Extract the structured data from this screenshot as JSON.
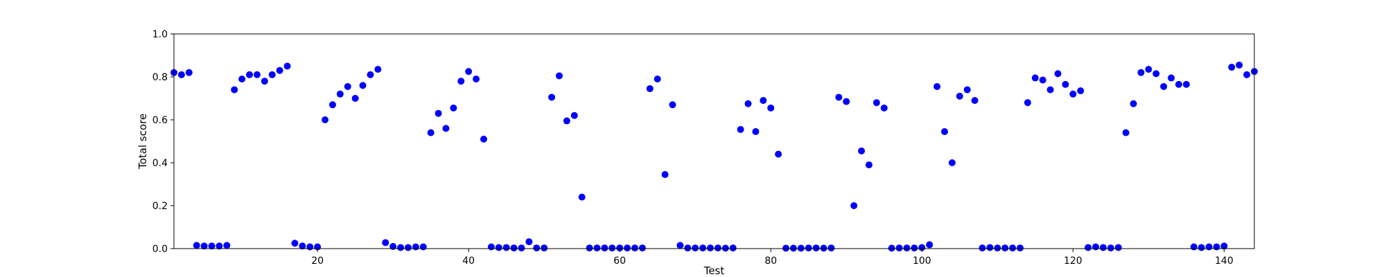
{
  "chart_data": {
    "type": "scatter",
    "xlabel": "Test",
    "ylabel": "Total score",
    "xlim": [
      1,
      144
    ],
    "ylim": [
      0.0,
      1.0
    ],
    "x_ticks": [
      20,
      40,
      60,
      80,
      100,
      120,
      140
    ],
    "y_ticks": [
      0.0,
      0.2,
      0.4,
      0.6,
      0.8,
      1.0
    ],
    "x_tick_labels": [
      "20",
      "40",
      "60",
      "80",
      "100",
      "120",
      "140"
    ],
    "y_tick_labels": [
      "0.0",
      "0.2",
      "0.4",
      "0.6",
      "0.8",
      "1.0"
    ],
    "grid": false,
    "marker_color": "#0000ff",
    "series": [
      {
        "x": [
          1,
          2,
          3,
          4,
          5,
          6,
          7,
          8,
          9,
          10,
          11,
          12,
          13,
          14,
          15,
          16,
          17,
          18,
          19,
          20,
          21,
          22,
          23,
          24,
          25,
          26,
          27,
          28,
          29,
          30,
          31,
          32,
          33,
          34,
          35,
          36,
          37,
          38,
          39,
          40,
          41,
          42,
          43,
          44,
          45,
          46,
          47,
          48,
          49,
          50,
          51,
          52,
          53,
          54,
          55,
          56,
          57,
          58,
          59,
          60,
          61,
          62,
          63,
          64,
          65,
          66,
          67,
          68,
          69,
          70,
          71,
          72,
          73,
          74,
          75,
          76,
          77,
          78,
          79,
          80,
          81,
          82,
          83,
          84,
          85,
          86,
          87,
          88,
          89,
          90,
          91,
          92,
          93,
          94,
          95,
          96,
          97,
          98,
          99,
          100,
          101,
          102,
          103,
          104,
          105,
          106,
          107,
          108,
          109,
          110,
          111,
          112,
          113,
          114,
          115,
          116,
          117,
          118,
          119,
          120,
          121,
          122,
          123,
          124,
          125,
          126,
          127,
          128,
          129,
          130,
          131,
          132,
          133,
          134,
          135,
          136,
          137,
          138,
          139,
          140,
          141,
          142,
          143,
          144
        ],
        "values": [
          0.82,
          0.81,
          0.82,
          0.015,
          0.012,
          0.012,
          0.012,
          0.015,
          0.74,
          0.79,
          0.81,
          0.81,
          0.78,
          0.81,
          0.83,
          0.85,
          0.025,
          0.012,
          0.008,
          0.008,
          0.6,
          0.67,
          0.72,
          0.755,
          0.7,
          0.76,
          0.81,
          0.835,
          0.028,
          0.01,
          0.005,
          0.005,
          0.008,
          0.008,
          0.54,
          0.63,
          0.56,
          0.655,
          0.78,
          0.825,
          0.79,
          0.51,
          0.008,
          0.005,
          0.005,
          0.003,
          0.003,
          0.032,
          0.003,
          0.003,
          0.705,
          0.805,
          0.595,
          0.62,
          0.24,
          0.003,
          0.003,
          0.003,
          0.003,
          0.003,
          0.003,
          0.003,
          0.003,
          0.745,
          0.79,
          0.345,
          0.67,
          0.015,
          0.003,
          0.003,
          0.003,
          0.003,
          0.003,
          0.002,
          0.003,
          0.555,
          0.675,
          0.545,
          0.69,
          0.655,
          0.44,
          0.002,
          0.002,
          0.002,
          0.003,
          0.003,
          0.002,
          0.003,
          0.705,
          0.685,
          0.2,
          0.455,
          0.39,
          0.68,
          0.655,
          0.002,
          0.003,
          0.003,
          0.003,
          0.005,
          0.018,
          0.755,
          0.545,
          0.4,
          0.71,
          0.74,
          0.69,
          0.003,
          0.005,
          0.003,
          0.003,
          0.003,
          0.003,
          0.68,
          0.795,
          0.785,
          0.74,
          0.815,
          0.765,
          0.72,
          0.735,
          0.005,
          0.008,
          0.005,
          0.003,
          0.005,
          0.54,
          0.675,
          0.82,
          0.835,
          0.815,
          0.755,
          0.795,
          0.765,
          0.765,
          0.008,
          0.005,
          0.008,
          0.008,
          0.012,
          0.845,
          0.855,
          0.81,
          0.825
        ]
      }
    ]
  }
}
